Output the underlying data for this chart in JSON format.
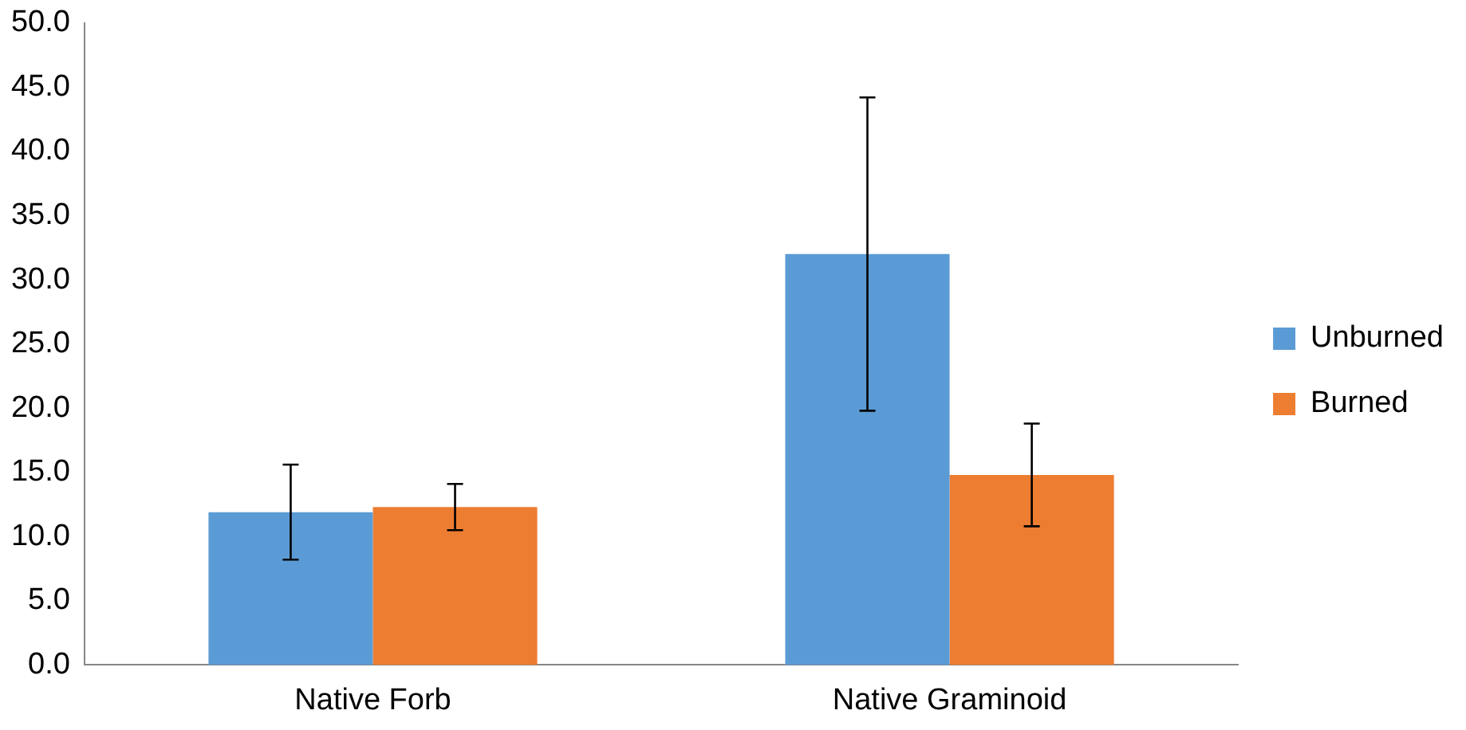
{
  "chart_data": {
    "type": "bar",
    "categories": [
      "Native Forb",
      "Native Graminoid"
    ],
    "series": [
      {
        "name": "Unburned",
        "color": "#5b9bd5",
        "values": [
          11.9,
          32.0
        ],
        "errors": [
          3.7,
          12.2
        ]
      },
      {
        "name": "Burned",
        "color": "#ed7d31",
        "values": [
          12.3,
          14.8
        ],
        "errors": [
          1.8,
          4.0
        ]
      }
    ],
    "ylim": [
      0,
      50
    ],
    "yticks": [
      {
        "value": 0,
        "label": "0.0"
      },
      {
        "value": 5,
        "label": "5.0"
      },
      {
        "value": 10,
        "label": "10.0"
      },
      {
        "value": 15,
        "label": "15.0"
      },
      {
        "value": 20,
        "label": "20.0"
      },
      {
        "value": 25,
        "label": "25.0"
      },
      {
        "value": 30,
        "label": "30.0"
      },
      {
        "value": 35,
        "label": "35.0"
      },
      {
        "value": 40,
        "label": "40.0"
      },
      {
        "value": 45,
        "label": "45.0"
      },
      {
        "value": 50,
        "label": "50.0"
      }
    ],
    "grid": false,
    "legend": "right"
  }
}
